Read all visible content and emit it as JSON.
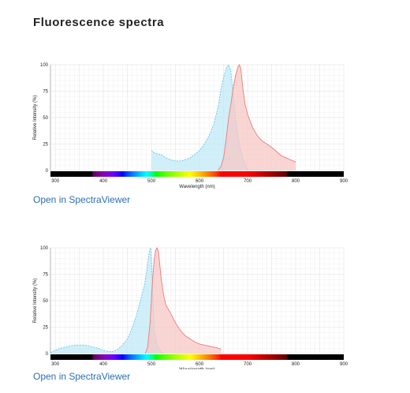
{
  "page": {
    "title": "Fluorescence spectra",
    "link_label": "Open in SpectraViewer"
  },
  "chart_data": [
    {
      "type": "area",
      "xlabel": "Wavelength (nm)",
      "ylabel": "Relative Intensity (%)",
      "xlim": [
        290,
        900
      ],
      "ylim": [
        0,
        100
      ],
      "xticks": [
        300,
        400,
        500,
        600,
        700,
        800,
        900
      ],
      "yticks": [
        0,
        25,
        50,
        75,
        100
      ],
      "grid": true,
      "series": [
        {
          "kind": "excitation",
          "color": "#5bc8ec",
          "fill": "#bfe9f7",
          "x": [
            500,
            505,
            510,
            520,
            530,
            540,
            550,
            560,
            570,
            580,
            590,
            600,
            610,
            620,
            630,
            640,
            645,
            650,
            655,
            660,
            665,
            670,
            675,
            680,
            685,
            690,
            695,
            700
          ],
          "y": [
            19,
            17,
            16,
            15,
            12,
            10,
            9,
            9,
            10,
            12,
            15,
            19,
            25,
            33,
            44,
            63,
            78,
            88,
            96,
            100,
            95,
            72,
            50,
            32,
            20,
            12,
            6,
            0
          ]
        },
        {
          "kind": "emission",
          "color": "#ee7b78",
          "fill": "#f7c6c4",
          "x": [
            638,
            645,
            650,
            655,
            660,
            665,
            670,
            675,
            680,
            683,
            686,
            690,
            695,
            700,
            710,
            720,
            730,
            740,
            750,
            760,
            770,
            780,
            790,
            800
          ],
          "y": [
            0,
            4,
            12,
            28,
            48,
            62,
            78,
            90,
            98,
            100,
            96,
            78,
            62,
            53,
            41,
            33,
            28,
            25,
            22,
            18,
            14,
            12,
            10,
            8
          ]
        }
      ]
    },
    {
      "type": "area",
      "xlabel": "Wavelength (nm)",
      "ylabel": "Relative Intensity (%)",
      "xlim": [
        290,
        900
      ],
      "ylim": [
        0,
        100
      ],
      "xticks": [
        300,
        400,
        500,
        600,
        700,
        800,
        900
      ],
      "yticks": [
        0,
        25,
        50,
        75,
        100
      ],
      "grid": true,
      "series": [
        {
          "kind": "excitation",
          "color": "#5bc8ec",
          "fill": "#bfe9f7",
          "x": [
            290,
            300,
            310,
            320,
            330,
            340,
            350,
            360,
            370,
            380,
            390,
            400,
            410,
            420,
            430,
            440,
            450,
            460,
            470,
            480,
            485,
            490,
            495,
            498,
            500,
            503,
            506,
            510,
            515,
            520,
            525
          ],
          "y": [
            1,
            3,
            5,
            6,
            7,
            8,
            8,
            8,
            7,
            6,
            5,
            3,
            2,
            2,
            4,
            8,
            14,
            24,
            38,
            55,
            64,
            78,
            95,
            100,
            90,
            55,
            22,
            10,
            5,
            2,
            0
          ]
        },
        {
          "kind": "emission",
          "color": "#ee7b78",
          "fill": "#f7c6c4",
          "x": [
            487,
            492,
            497,
            500,
            503,
            506,
            509,
            512,
            515,
            520,
            525,
            530,
            540,
            550,
            560,
            570,
            580,
            590,
            600,
            610,
            620,
            630,
            640,
            645
          ],
          "y": [
            0,
            6,
            28,
            52,
            74,
            90,
            98,
            100,
            95,
            72,
            56,
            46,
            38,
            29,
            22,
            17,
            14,
            11,
            9,
            8,
            7,
            6,
            5,
            4
          ]
        }
      ]
    }
  ]
}
